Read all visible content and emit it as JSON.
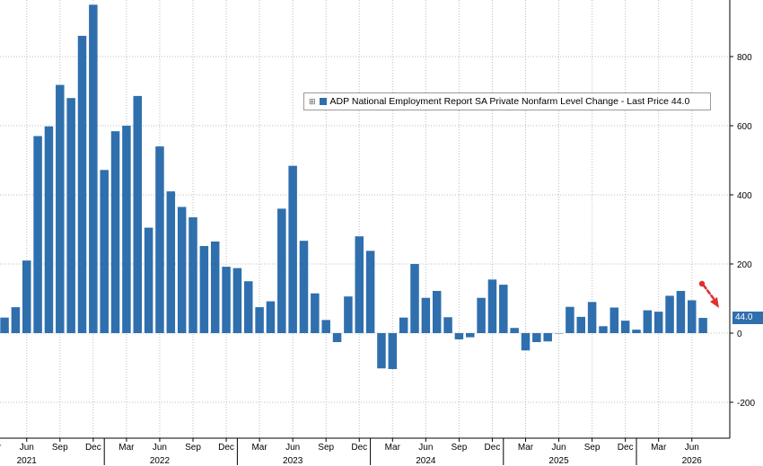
{
  "chart_data": {
    "type": "bar",
    "legend": {
      "marker": "⊞",
      "label": "ADP National Employment Report SA Private Nonfarm Level Change - Last Price 44.0"
    },
    "last_value_label": "44.0",
    "bar_color": "#2f6fad",
    "annotation": "red dashed arrow pointing down to latest bar",
    "annotation_color": "#e03030",
    "ylim": [
      -300,
      950
    ],
    "y_ticks": [
      -200,
      0,
      200,
      400,
      600,
      800
    ],
    "y_tick_labels": [
      "-200",
      "0",
      "200",
      "400",
      "600",
      "800"
    ],
    "grid": true,
    "x_tick_labels": [
      {
        "month": "Mar",
        "label": "Mar"
      },
      {
        "month": "Jun",
        "label": "Jun"
      },
      {
        "month": "Sep",
        "label": "Sep"
      },
      {
        "month": "Dec",
        "label": "Dec"
      },
      {
        "month": "Mar",
        "label": "Mar"
      },
      {
        "month": "Jun",
        "label": "Jun"
      },
      {
        "month": "Sep",
        "label": "Sep"
      },
      {
        "month": "Dec",
        "label": "Dec"
      },
      {
        "month": "Mar",
        "label": "Mar"
      },
      {
        "month": "Jun",
        "label": "Jun"
      },
      {
        "month": "Sep",
        "label": "Sep"
      },
      {
        "month": "Dec",
        "label": "Dec"
      },
      {
        "month": "Mar",
        "label": "Mar"
      },
      {
        "month": "Jun",
        "label": "Jun"
      },
      {
        "month": "Sep",
        "label": "Sep"
      },
      {
        "month": "Dec",
        "label": "Dec"
      },
      {
        "month": "Mar",
        "label": "Mar"
      },
      {
        "month": "Jun",
        "label": "Jun"
      },
      {
        "month": "Sep",
        "label": "Sep"
      },
      {
        "month": "Dec",
        "label": "Dec"
      },
      {
        "month": "Mar",
        "label": "Mar"
      },
      {
        "month": "Jun",
        "label": "Jun"
      }
    ],
    "year_labels": [
      "2021",
      "2022",
      "2023",
      "2024",
      "2025",
      "2026"
    ],
    "x": [
      "2021-04",
      "2021-05",
      "2021-06",
      "2021-07",
      "2021-08",
      "2021-09",
      "2021-10",
      "2021-11",
      "2021-12",
      "2022-01",
      "2022-02",
      "2022-03",
      "2022-04",
      "2022-05",
      "2022-06",
      "2022-07",
      "2022-08",
      "2022-09",
      "2022-10",
      "2022-11",
      "2022-12",
      "2023-01",
      "2023-02",
      "2023-03",
      "2023-04",
      "2023-05",
      "2023-06",
      "2023-07",
      "2023-08",
      "2023-09",
      "2023-10",
      "2023-11",
      "2023-12",
      "2024-01",
      "2024-02",
      "2024-03",
      "2024-04",
      "2024-05",
      "2024-06",
      "2024-07",
      "2024-08",
      "2024-09",
      "2024-10",
      "2024-11",
      "2024-12",
      "2025-01",
      "2025-02",
      "2025-03",
      "2025-04",
      "2025-05",
      "2025-06",
      "2025-07",
      "2025-08",
      "2025-09",
      "2025-10",
      "2025-11",
      "2025-12",
      "2026-01",
      "2026-02",
      "2026-03",
      "2026-04",
      "2026-05",
      "2026-06",
      "2026-07"
    ],
    "values": [
      45,
      75,
      210,
      570,
      598,
      718,
      680,
      860,
      950,
      472,
      584,
      600,
      686,
      305,
      540,
      410,
      365,
      335,
      252,
      265,
      192,
      188,
      150,
      75,
      92,
      360,
      484,
      267,
      115,
      38,
      -26,
      106,
      280,
      238,
      -102,
      -104,
      45,
      200,
      102,
      122,
      46,
      -18,
      -12,
      102,
      155,
      140,
      15,
      -50,
      -26,
      -24,
      0,
      76,
      47,
      90,
      20,
      74,
      36,
      10,
      66,
      62,
      108,
      122,
      95,
      44
    ]
  }
}
